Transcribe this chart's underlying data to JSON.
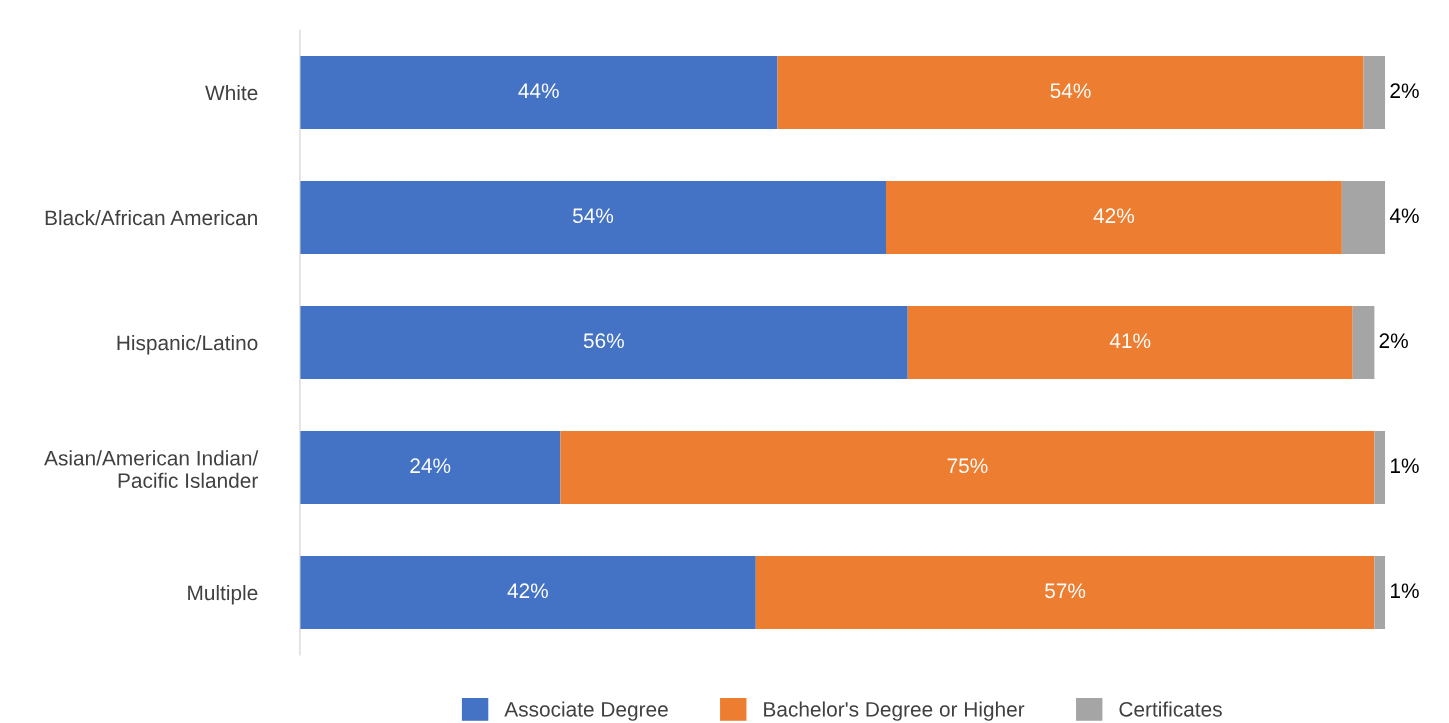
{
  "chart_data": {
    "type": "bar",
    "orientation": "horizontal",
    "stacked": true,
    "categories": [
      "White",
      "Black/African American",
      "Hispanic/Latino",
      "Asian/American Indian/\nPacific Islander",
      "Multiple"
    ],
    "series": [
      {
        "name": "Associate Degree",
        "color": "#4472c4",
        "values": [
          44,
          54,
          56,
          24,
          42
        ],
        "value_labels": [
          "44%",
          "54%",
          "56%",
          "24%",
          "42%"
        ]
      },
      {
        "name": "Bachelor's Degree or Higher",
        "color": "#ed7d31",
        "values": [
          54,
          42,
          41,
          75,
          57
        ],
        "value_labels": [
          "54%",
          "42%",
          "41%",
          "75%",
          "57%"
        ]
      },
      {
        "name": "Certificates",
        "color": "#a5a5a5",
        "values": [
          2,
          4,
          2,
          1,
          1
        ],
        "value_labels": [
          "2%",
          "4%",
          "2%",
          "1%",
          "1%"
        ]
      }
    ],
    "tick_labels": "y",
    "legend": "bottom",
    "grid": false
  }
}
